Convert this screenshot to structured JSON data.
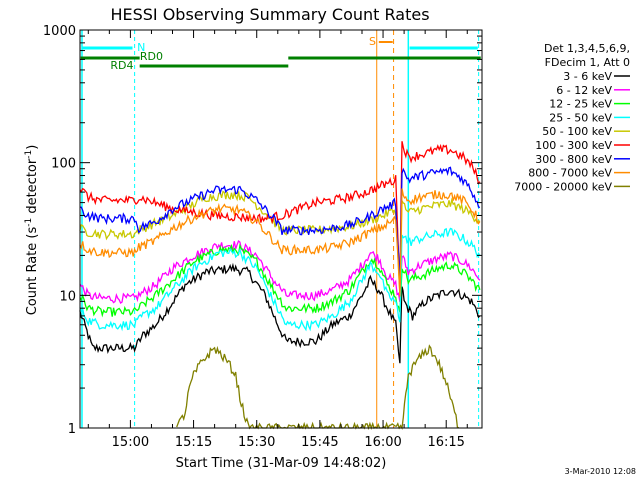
{
  "chart_data": {
    "type": "line",
    "title": "HESSI Observing Summary Count Rates",
    "xlabel": "Start Time (31-Mar-09 14:48:02)",
    "ylabel": "Count Rate (s^-1 detector^-1)",
    "ylabel_main": "Count Rate (s",
    "ylabel_sup1": "-1",
    "ylabel_mid": " detector",
    "ylabel_sup2": "-1",
    "ylabel_end": ")",
    "yscale": "log",
    "ylim": [
      1,
      1000
    ],
    "xlim_minutes": [
      48.03,
      143.5
    ],
    "x_units": "minutes after 14:00 UT, 31-Mar-09",
    "x_ticks": [
      {
        "m": 60,
        "label": "15:00"
      },
      {
        "m": 75,
        "label": "15:15"
      },
      {
        "m": 90,
        "label": "15:30"
      },
      {
        "m": 105,
        "label": "15:45"
      },
      {
        "m": 120,
        "label": "16:00"
      },
      {
        "m": 135,
        "label": "16:15"
      }
    ],
    "y_ticks": [
      {
        "v": 1,
        "label": "1"
      },
      {
        "v": 10,
        "label": "10"
      },
      {
        "v": 100,
        "label": "100"
      },
      {
        "v": 1000,
        "label": "1000"
      }
    ],
    "legend_header": [
      "Det 1,3,4,5,6,9,",
      "FDecim 1, Att 0"
    ],
    "legend_position": "right",
    "timestamp": "3-Mar-2010 12:08",
    "series": [
      {
        "name": "3 - 6 keV",
        "color": "#000000",
        "pts": [
          [
            48,
            7.5
          ],
          [
            50,
            5
          ],
          [
            51,
            4
          ],
          [
            61,
            4
          ],
          [
            63,
            5
          ],
          [
            66,
            6
          ],
          [
            69,
            8
          ],
          [
            73,
            12
          ],
          [
            78,
            15
          ],
          [
            84,
            16
          ],
          [
            88,
            15
          ],
          [
            92,
            10
          ],
          [
            95,
            6
          ],
          [
            97,
            4.5
          ],
          [
            104,
            4.5
          ],
          [
            108,
            6
          ],
          [
            112,
            7
          ],
          [
            115,
            10
          ],
          [
            117,
            13
          ],
          [
            119,
            11
          ],
          [
            121,
            8
          ],
          [
            123,
            6
          ],
          [
            124,
            3
          ],
          [
            124.5,
            12
          ],
          [
            125,
            9
          ],
          [
            127,
            7
          ],
          [
            130,
            9
          ],
          [
            133,
            10
          ],
          [
            136,
            11
          ],
          [
            139,
            10
          ],
          [
            141,
            9
          ],
          [
            143,
            7
          ]
        ]
      },
      {
        "name": "6 - 12 keV",
        "color": "#ff00ff",
        "pts": [
          [
            48,
            12
          ],
          [
            50,
            10
          ],
          [
            53,
            9.5
          ],
          [
            61,
            9.5
          ],
          [
            63,
            10.5
          ],
          [
            66,
            12
          ],
          [
            70,
            16
          ],
          [
            75,
            20
          ],
          [
            81,
            24
          ],
          [
            86,
            24
          ],
          [
            90,
            20
          ],
          [
            94,
            13
          ],
          [
            97,
            10
          ],
          [
            104,
            10
          ],
          [
            108,
            11
          ],
          [
            112,
            13
          ],
          [
            115,
            17
          ],
          [
            117,
            21
          ],
          [
            119,
            19
          ],
          [
            121,
            14
          ],
          [
            123,
            12
          ],
          [
            124,
            9
          ],
          [
            124.5,
            20
          ],
          [
            126,
            15
          ],
          [
            129,
            17
          ],
          [
            133,
            19
          ],
          [
            136,
            20
          ],
          [
            139,
            18
          ],
          [
            141,
            16
          ],
          [
            143,
            13
          ]
        ]
      },
      {
        "name": "12 - 25 keV",
        "color": "#00ff00",
        "pts": [
          [
            48,
            10
          ],
          [
            50,
            8
          ],
          [
            53,
            7.5
          ],
          [
            61,
            7.5
          ],
          [
            63,
            8.5
          ],
          [
            66,
            10
          ],
          [
            70,
            13
          ],
          [
            75,
            18
          ],
          [
            81,
            22
          ],
          [
            86,
            22
          ],
          [
            90,
            18
          ],
          [
            94,
            11
          ],
          [
            97,
            8
          ],
          [
            104,
            8
          ],
          [
            108,
            9
          ],
          [
            112,
            11
          ],
          [
            115,
            15
          ],
          [
            117,
            19
          ],
          [
            119,
            17
          ],
          [
            121,
            12
          ],
          [
            123,
            10
          ],
          [
            124,
            7
          ],
          [
            124.5,
            17
          ],
          [
            126,
            13
          ],
          [
            129,
            14
          ],
          [
            133,
            16
          ],
          [
            136,
            17
          ],
          [
            139,
            15
          ],
          [
            141,
            13
          ],
          [
            143,
            11
          ]
        ]
      },
      {
        "name": "25 - 50 keV",
        "color": "#00ffff",
        "pts": [
          [
            48,
            8
          ],
          [
            50,
            6.5
          ],
          [
            53,
            6
          ],
          [
            61,
            6
          ],
          [
            63,
            7
          ],
          [
            66,
            8
          ],
          [
            70,
            11
          ],
          [
            75,
            16
          ],
          [
            81,
            21
          ],
          [
            86,
            21
          ],
          [
            90,
            16
          ],
          [
            94,
            9
          ],
          [
            97,
            6
          ],
          [
            104,
            6
          ],
          [
            108,
            7
          ],
          [
            112,
            9
          ],
          [
            115,
            13
          ],
          [
            117,
            17
          ],
          [
            119,
            15
          ],
          [
            121,
            10
          ],
          [
            123,
            9
          ],
          [
            124,
            6
          ],
          [
            124.5,
            30
          ],
          [
            126,
            25
          ],
          [
            129,
            27
          ],
          [
            133,
            29
          ],
          [
            136,
            30
          ],
          [
            139,
            27
          ],
          [
            141,
            24
          ],
          [
            143,
            20
          ]
        ]
      },
      {
        "name": "50 - 100 keV",
        "color": "#c8c800",
        "pts": [
          [
            48,
            32
          ],
          [
            50,
            30
          ],
          [
            53,
            29
          ],
          [
            61,
            29
          ],
          [
            62,
            31
          ],
          [
            70,
            40
          ],
          [
            78,
            55
          ],
          [
            84,
            58
          ],
          [
            88,
            55
          ],
          [
            92,
            42
          ],
          [
            96,
            31
          ],
          [
            104,
            31
          ],
          [
            108,
            32
          ],
          [
            112,
            33
          ],
          [
            116,
            36
          ],
          [
            120,
            40
          ],
          [
            122,
            43
          ],
          [
            123,
            44
          ],
          [
            124,
            10
          ],
          [
            124.5,
            50
          ],
          [
            126,
            42
          ],
          [
            129,
            45
          ],
          [
            133,
            48
          ],
          [
            136,
            49
          ],
          [
            139,
            45
          ],
          [
            141,
            41
          ],
          [
            143,
            36
          ]
        ]
      },
      {
        "name": "100 - 300 keV",
        "color": "#ff0000",
        "pts": [
          [
            48,
            65
          ],
          [
            50,
            55
          ],
          [
            53,
            52
          ],
          [
            61,
            52
          ],
          [
            62,
            55
          ],
          [
            70,
            45
          ],
          [
            80,
            40
          ],
          [
            92,
            38
          ],
          [
            96,
            40
          ],
          [
            104,
            50
          ],
          [
            108,
            52
          ],
          [
            112,
            55
          ],
          [
            116,
            60
          ],
          [
            120,
            68
          ],
          [
            122,
            72
          ],
          [
            123,
            75
          ],
          [
            124,
            12
          ],
          [
            124.5,
            140
          ],
          [
            126,
            110
          ],
          [
            129,
            115
          ],
          [
            133,
            125
          ],
          [
            136,
            125
          ],
          [
            139,
            110
          ],
          [
            141,
            95
          ],
          [
            143,
            72
          ]
        ]
      },
      {
        "name": "300 - 800 keV",
        "color": "#0000ff",
        "pts": [
          [
            48,
            45
          ],
          [
            50,
            40
          ],
          [
            53,
            38
          ],
          [
            61,
            38
          ],
          [
            62,
            32
          ],
          [
            66,
            36
          ],
          [
            70,
            45
          ],
          [
            76,
            55
          ],
          [
            80,
            62
          ],
          [
            86,
            63
          ],
          [
            90,
            52
          ],
          [
            94,
            38
          ],
          [
            96,
            31
          ],
          [
            104,
            31
          ],
          [
            108,
            32
          ],
          [
            112,
            34
          ],
          [
            116,
            38
          ],
          [
            120,
            45
          ],
          [
            122,
            48
          ],
          [
            123,
            50
          ],
          [
            124,
            12
          ],
          [
            124.5,
            90
          ],
          [
            126,
            75
          ],
          [
            129,
            80
          ],
          [
            133,
            85
          ],
          [
            136,
            87
          ],
          [
            139,
            75
          ],
          [
            141,
            62
          ],
          [
            143,
            46
          ]
        ]
      },
      {
        "name": "800 - 7000 keV",
        "color": "#ff8c00",
        "pts": [
          [
            48,
            25
          ],
          [
            50,
            22
          ],
          [
            53,
            21
          ],
          [
            61,
            21
          ],
          [
            62,
            23
          ],
          [
            66,
            26
          ],
          [
            70,
            32
          ],
          [
            76,
            40
          ],
          [
            81,
            45
          ],
          [
            86,
            44
          ],
          [
            90,
            36
          ],
          [
            94,
            26
          ],
          [
            96,
            22
          ],
          [
            104,
            22
          ],
          [
            108,
            23
          ],
          [
            112,
            25
          ],
          [
            116,
            29
          ],
          [
            120,
            33
          ],
          [
            122,
            36
          ],
          [
            123,
            38
          ],
          [
            124,
            10
          ],
          [
            124.5,
            60
          ],
          [
            126,
            52
          ],
          [
            129,
            55
          ],
          [
            133,
            58
          ],
          [
            136,
            57
          ],
          [
            139,
            52
          ],
          [
            141,
            45
          ],
          [
            143,
            36
          ]
        ]
      },
      {
        "name": "7000 - 20000 keV",
        "color": "#808000",
        "pts": [
          [
            71,
            1
          ],
          [
            73,
            1.3
          ],
          [
            74,
            2
          ],
          [
            75,
            2.5
          ],
          [
            77,
            3.2
          ],
          [
            80,
            4
          ],
          [
            83,
            3.2
          ],
          [
            85,
            2.5
          ],
          [
            86,
            1.7
          ],
          [
            88,
            1
          ],
          [
            124.5,
            1
          ],
          [
            126,
            2.5
          ],
          [
            128,
            3.2
          ],
          [
            131,
            4
          ],
          [
            133,
            3.2
          ],
          [
            135,
            2.2
          ],
          [
            137,
            1.3
          ],
          [
            138,
            1
          ]
        ]
      }
    ],
    "annotations": {
      "saa_label": "N",
      "rd_labels": [
        "RD4",
        "RD0"
      ],
      "flare_label": "S",
      "colors": {
        "saa": "#00ffff",
        "rd": "#008000",
        "flare": "#ff8c00"
      }
    }
  }
}
